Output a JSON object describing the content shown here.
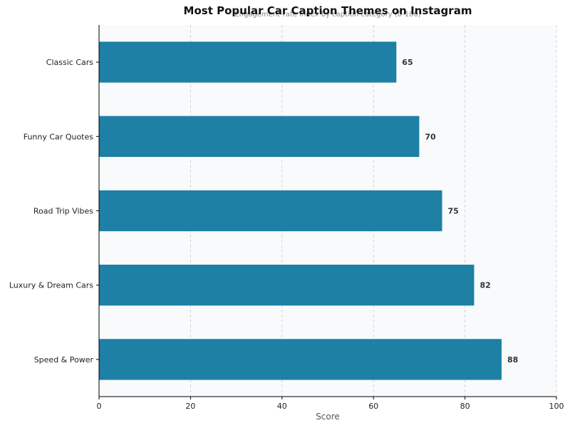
{
  "chart_data": {
    "type": "bar",
    "orientation": "horizontal",
    "title": "Most Popular Car Caption Themes on Instagram",
    "subtitle": "Engagement-rate index by caption category (0-100)",
    "xlabel": "Score",
    "ylabel": "",
    "xlim": [
      0,
      100
    ],
    "xticks": [
      0,
      20,
      40,
      60,
      80,
      100
    ],
    "categories": [
      "Classic Cars",
      "Funny Car Quotes",
      "Road Trip Vibes",
      "Luxury & Dream Cars",
      "Speed & Power"
    ],
    "values": [
      65,
      70,
      75,
      82,
      88
    ],
    "grid": "vertical-dashed",
    "colors": {
      "bar": "#1d80a4",
      "plot_background": "#f8fafc",
      "grid": "#cccccc"
    }
  }
}
